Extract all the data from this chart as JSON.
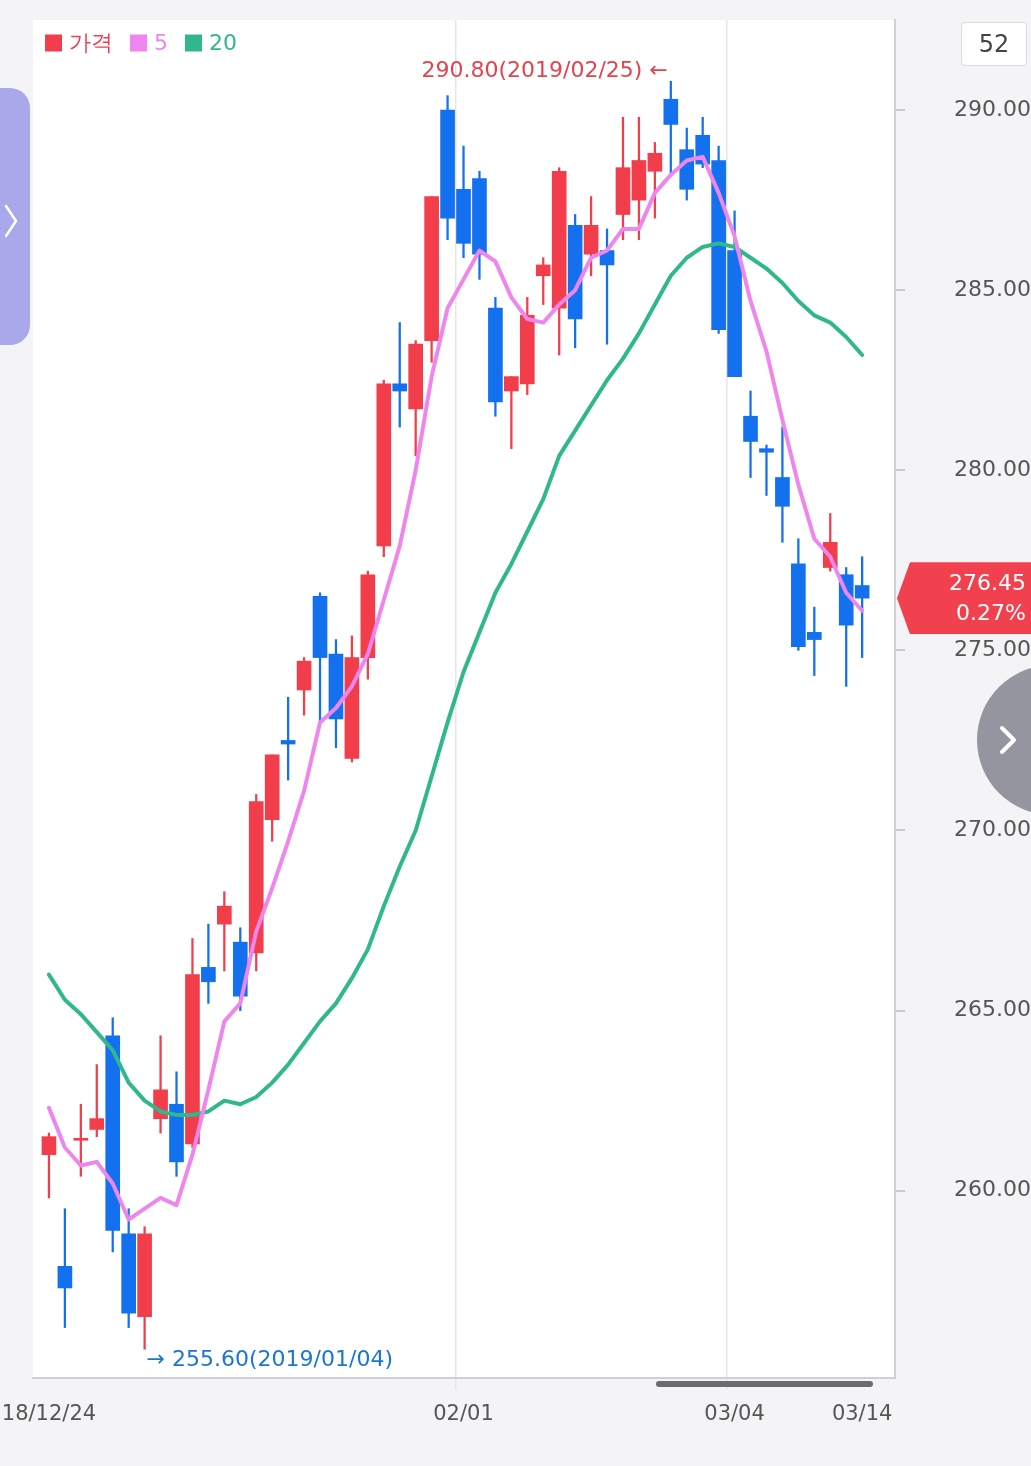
{
  "chart_data": {
    "type": "candlestick",
    "categories": [
      "18/12/24",
      null,
      null,
      null,
      null,
      null,
      null,
      null,
      null,
      null,
      null,
      null,
      null,
      null,
      null,
      null,
      null,
      null,
      null,
      null,
      null,
      null,
      null,
      null,
      null,
      null,
      "02/01",
      null,
      null,
      null,
      null,
      null,
      null,
      null,
      null,
      null,
      null,
      null,
      null,
      null,
      null,
      null,
      null,
      "03/04",
      null,
      null,
      null,
      null,
      null,
      null,
      null,
      "03/14"
    ],
    "series": [
      {
        "name": "가격",
        "type": "candlestick",
        "color": "#f23d4b",
        "colors": [
          "#f23d4b",
          "#1370ef",
          "#f23d4b",
          "#f23d4b",
          "#1370ef",
          "#1370ef",
          "#f23d4b",
          "#f23d4b",
          "#1370ef",
          "#f23d4b",
          "#1370ef",
          "#f23d4b",
          "#1370ef",
          "#f23d4b",
          "#f23d4b",
          "#1370ef",
          "#f23d4b",
          "#1370ef",
          "#1370ef",
          "#f23d4b",
          "#f23d4b",
          "#f23d4b",
          "#1370ef",
          "#f23d4b",
          "#f23d4b",
          "#1370ef",
          "#1370ef",
          "#1370ef",
          "#1370ef",
          "#f23d4b",
          "#f23d4b",
          "#f23d4b",
          "#f23d4b",
          "#1370ef",
          "#f23d4b",
          "#1370ef",
          "#f23d4b",
          "#f23d4b",
          "#f23d4b",
          "#1370ef",
          "#1370ef",
          "#1370ef",
          "#1370ef",
          "#1370ef",
          "#1370ef",
          "#1370ef",
          "#1370ef",
          "#1370ef",
          "#1370ef",
          "#f23d4b",
          "#1370ef",
          "#1370ef"
        ],
        "ohlc": [
          [
            261.0,
            261.6,
            259.8,
            261.5
          ],
          [
            257.9,
            259.5,
            256.2,
            257.3
          ],
          [
            261.4,
            262.4,
            260.4,
            261.4
          ],
          [
            261.7,
            263.5,
            261.5,
            262.0
          ],
          [
            264.3,
            264.8,
            258.3,
            258.9
          ],
          [
            258.8,
            259.5,
            256.2,
            256.6
          ],
          [
            256.5,
            259.0,
            255.6,
            258.8
          ],
          [
            262.0,
            264.3,
            261.6,
            262.8
          ],
          [
            262.4,
            263.3,
            260.4,
            260.8
          ],
          [
            261.3,
            267.0,
            261.2,
            266.0
          ],
          [
            266.2,
            267.4,
            265.2,
            265.8
          ],
          [
            267.4,
            268.3,
            266.1,
            267.9
          ],
          [
            266.9,
            267.3,
            265.0,
            265.4
          ],
          [
            266.6,
            271.0,
            266.1,
            270.8
          ],
          [
            270.3,
            272.1,
            269.7,
            272.1
          ],
          [
            272.5,
            273.7,
            271.4,
            272.4
          ],
          [
            273.9,
            274.8,
            273.2,
            274.7
          ],
          [
            276.5,
            276.6,
            273.0,
            274.8
          ],
          [
            274.9,
            275.3,
            272.3,
            273.1
          ],
          [
            272.0,
            275.4,
            271.9,
            274.8
          ],
          [
            274.8,
            277.2,
            274.2,
            277.1
          ],
          [
            277.9,
            282.5,
            277.6,
            282.4
          ],
          [
            282.4,
            284.1,
            281.2,
            282.2
          ],
          [
            281.7,
            283.6,
            280.4,
            283.5
          ],
          [
            283.6,
            287.6,
            283.0,
            287.6
          ],
          [
            290.0,
            290.4,
            286.4,
            287.0
          ],
          [
            287.8,
            289.0,
            285.9,
            286.3
          ],
          [
            288.1,
            288.3,
            285.3,
            286.0
          ],
          [
            284.5,
            284.8,
            281.5,
            281.9
          ],
          [
            282.2,
            282.6,
            280.6,
            282.6
          ],
          [
            282.4,
            284.8,
            282.1,
            284.3
          ],
          [
            285.4,
            285.9,
            284.6,
            285.7
          ],
          [
            284.5,
            288.4,
            283.2,
            288.3
          ],
          [
            286.8,
            287.1,
            283.4,
            284.2
          ],
          [
            286.0,
            287.6,
            285.4,
            286.8
          ],
          [
            286.1,
            286.7,
            283.5,
            285.7
          ],
          [
            287.1,
            289.8,
            286.4,
            288.4
          ],
          [
            287.5,
            289.8,
            286.4,
            288.6
          ],
          [
            288.3,
            289.1,
            287.0,
            288.8
          ],
          [
            290.3,
            290.8,
            288.2,
            289.6
          ],
          [
            288.9,
            289.5,
            287.5,
            287.8
          ],
          [
            289.3,
            289.8,
            288.4,
            288.5
          ],
          [
            288.6,
            289.0,
            283.8,
            283.9
          ],
          [
            286.1,
            287.2,
            282.6,
            282.6
          ],
          [
            281.5,
            282.2,
            279.8,
            280.8
          ],
          [
            280.6,
            280.7,
            279.3,
            280.5
          ],
          [
            279.8,
            281.2,
            278.0,
            279.0
          ],
          [
            277.4,
            278.1,
            275.0,
            275.1
          ],
          [
            275.5,
            276.2,
            274.3,
            275.3
          ],
          [
            277.3,
            278.8,
            277.2,
            278.0
          ],
          [
            277.1,
            277.3,
            274.0,
            275.7
          ],
          [
            276.8,
            277.6,
            274.8,
            276.45
          ]
        ]
      },
      {
        "name": "5",
        "type": "line",
        "color": "#ee86ee",
        "values": [
          262.3,
          261.2,
          260.7,
          260.8,
          260.2,
          259.2,
          259.5,
          259.8,
          259.6,
          261.0,
          262.8,
          264.7,
          265.2,
          267.2,
          268.4,
          269.7,
          271.1,
          273.0,
          273.4,
          274.0,
          274.9,
          276.4,
          277.9,
          280.0,
          282.6,
          284.5,
          285.3,
          286.1,
          285.8,
          284.8,
          284.2,
          284.1,
          284.6,
          285.0,
          285.9,
          286.1,
          286.7,
          286.7,
          287.7,
          288.2,
          288.6,
          288.7,
          287.7,
          286.5,
          284.7,
          283.3,
          281.4,
          279.6,
          278.1,
          277.6,
          276.6,
          276.1
        ]
      },
      {
        "name": "20",
        "type": "line",
        "color": "#30b88c",
        "values": [
          266.0,
          265.3,
          264.9,
          264.4,
          263.9,
          263.0,
          262.5,
          262.2,
          262.1,
          262.1,
          262.2,
          262.5,
          262.4,
          262.6,
          263.0,
          263.5,
          264.1,
          264.7,
          265.2,
          265.9,
          266.7,
          267.9,
          269.0,
          270.0,
          271.5,
          273.0,
          274.4,
          275.5,
          276.6,
          277.4,
          278.3,
          279.2,
          280.4,
          281.1,
          281.8,
          282.5,
          283.1,
          283.8,
          284.6,
          285.4,
          285.9,
          286.2,
          286.3,
          286.2,
          285.9,
          285.6,
          285.2,
          284.7,
          284.3,
          284.1,
          283.7,
          283.2
        ]
      }
    ],
    "ylim": [
      254.8,
      292.5
    ],
    "yticks": [
      {
        "value": 260,
        "label": "260.00"
      },
      {
        "value": 265,
        "label": "265.00"
      },
      {
        "value": 270,
        "label": "270.00"
      },
      {
        "value": 275,
        "label": "275.00"
      },
      {
        "value": 280,
        "label": "280.00"
      },
      {
        "value": 285,
        "label": "285.00"
      },
      {
        "value": 290,
        "label": "290.00"
      }
    ],
    "grid": "x",
    "legend": "top left",
    "annotations": [
      "290.80(2019/02/25) ←",
      "→ 255.60(2019/01/04)",
      "276.45",
      "0.27%",
      "52"
    ]
  }
}
